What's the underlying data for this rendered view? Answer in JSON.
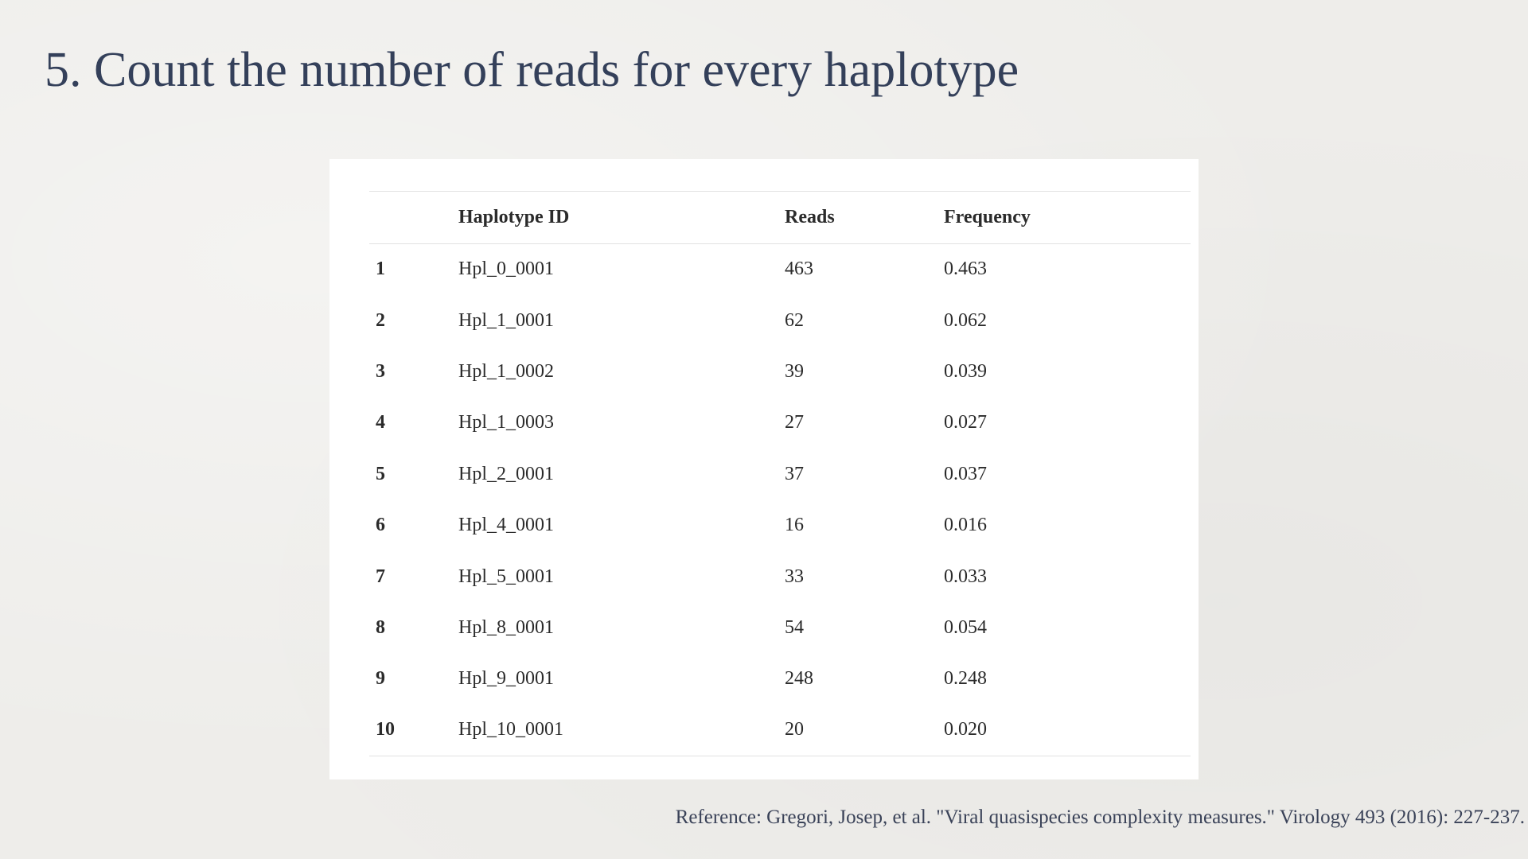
{
  "slide": {
    "title": "5. Count the number of reads for every haplotype",
    "reference": "Reference: Gregori, Josep, et al. \"Viral quasispecies complexity measures.\" Virology 493 (2016): 227-237."
  },
  "table": {
    "headers": {
      "index": "",
      "haplotype_id": "Haplotype ID",
      "reads": "Reads",
      "frequency": "Frequency"
    },
    "rows": [
      {
        "index": "1",
        "haplotype_id": "Hpl_0_0001",
        "reads": "463",
        "frequency": "0.463"
      },
      {
        "index": "2",
        "haplotype_id": "Hpl_1_0001",
        "reads": "62",
        "frequency": "0.062"
      },
      {
        "index": "3",
        "haplotype_id": "Hpl_1_0002",
        "reads": "39",
        "frequency": "0.039"
      },
      {
        "index": "4",
        "haplotype_id": "Hpl_1_0003",
        "reads": "27",
        "frequency": "0.027"
      },
      {
        "index": "5",
        "haplotype_id": "Hpl_2_0001",
        "reads": "37",
        "frequency": "0.037"
      },
      {
        "index": "6",
        "haplotype_id": "Hpl_4_0001",
        "reads": "16",
        "frequency": "0.016"
      },
      {
        "index": "7",
        "haplotype_id": "Hpl_5_0001",
        "reads": "33",
        "frequency": "0.033"
      },
      {
        "index": "8",
        "haplotype_id": "Hpl_8_0001",
        "reads": "54",
        "frequency": "0.054"
      },
      {
        "index": "9",
        "haplotype_id": "Hpl_9_0001",
        "reads": "248",
        "frequency": "0.248"
      },
      {
        "index": "10",
        "haplotype_id": "Hpl_10_0001",
        "reads": "20",
        "frequency": "0.020"
      }
    ]
  },
  "colors": {
    "title": "#34405a",
    "table_text": "#2b2b2b",
    "background": "#eeedea",
    "card": "#ffffff"
  }
}
